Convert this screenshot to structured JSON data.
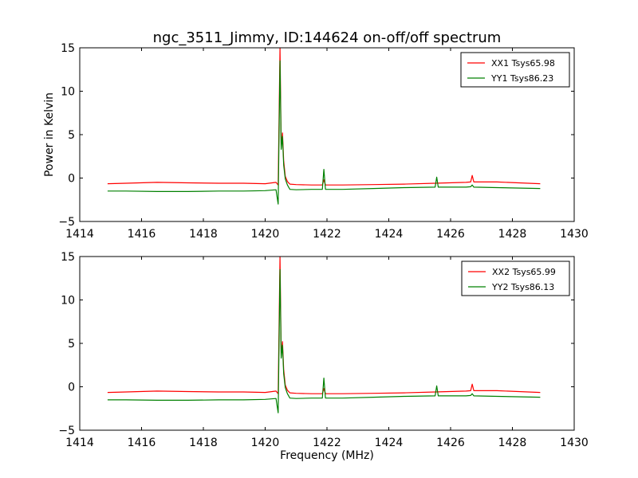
{
  "figure": {
    "title": "ngc_3511_Jimmy, ID:144624 on-off/off spectrum",
    "ylabel": "Power in Kelvin",
    "xlabel": "Frequency (MHz)"
  },
  "chart_data": [
    {
      "type": "line",
      "title": "ngc_3511_Jimmy, ID:144624 on-off/off spectrum",
      "ylabel": "Power in Kelvin",
      "xlabel": "",
      "xlim": [
        1414,
        1430
      ],
      "ylim": [
        -5,
        15
      ],
      "x_ticks": [
        1414,
        1416,
        1418,
        1420,
        1422,
        1424,
        1426,
        1428,
        1430
      ],
      "y_ticks": [
        -5,
        0,
        5,
        10,
        15
      ],
      "legend_position": "top-right",
      "series": [
        {
          "name": "XX1 Tsys65.98",
          "color": "#ff0000",
          "x": [
            1414.9,
            1415.5,
            1416.5,
            1417.5,
            1418.5,
            1419.3,
            1420.0,
            1420.35,
            1420.42,
            1420.48,
            1420.52,
            1420.56,
            1420.6,
            1420.65,
            1420.72,
            1420.8,
            1421.0,
            1421.5,
            1421.85,
            1421.9,
            1421.95,
            1422.5,
            1423.5,
            1424.5,
            1425.5,
            1426.5,
            1426.65,
            1426.7,
            1426.75,
            1427.5,
            1428.9
          ],
          "y": [
            -0.65,
            -0.6,
            -0.5,
            -0.55,
            -0.6,
            -0.6,
            -0.65,
            -0.5,
            -0.8,
            15.0,
            3.5,
            5.2,
            2.0,
            0.2,
            -0.4,
            -0.7,
            -0.75,
            -0.8,
            -0.8,
            -0.2,
            -0.8,
            -0.8,
            -0.75,
            -0.7,
            -0.6,
            -0.5,
            -0.45,
            0.3,
            -0.45,
            -0.45,
            -0.65
          ]
        },
        {
          "name": "YY1 Tsys86.23",
          "color": "#008000",
          "x": [
            1414.9,
            1415.5,
            1416.5,
            1417.5,
            1418.5,
            1419.3,
            1420.0,
            1420.35,
            1420.42,
            1420.48,
            1420.52,
            1420.56,
            1420.6,
            1420.65,
            1420.72,
            1420.8,
            1421.0,
            1421.5,
            1421.85,
            1421.9,
            1421.95,
            1422.5,
            1423.5,
            1424.5,
            1425.5,
            1425.55,
            1425.6,
            1426.5,
            1426.65,
            1426.7,
            1426.75,
            1427.5,
            1428.9
          ],
          "y": [
            -1.5,
            -1.5,
            -1.55,
            -1.55,
            -1.5,
            -1.5,
            -1.45,
            -1.35,
            -3.0,
            13.5,
            3.3,
            4.8,
            1.5,
            -0.1,
            -0.8,
            -1.3,
            -1.35,
            -1.3,
            -1.3,
            1.0,
            -1.3,
            -1.3,
            -1.2,
            -1.1,
            -1.05,
            0.1,
            -1.05,
            -1.05,
            -1.0,
            -0.8,
            -1.05,
            -1.1,
            -1.2
          ]
        }
      ]
    },
    {
      "type": "line",
      "title": "",
      "ylabel": "",
      "xlabel": "Frequency (MHz)",
      "xlim": [
        1414,
        1430
      ],
      "ylim": [
        -5,
        15
      ],
      "x_ticks": [
        1414,
        1416,
        1418,
        1420,
        1422,
        1424,
        1426,
        1428,
        1430
      ],
      "y_ticks": [
        -5,
        0,
        5,
        10,
        15
      ],
      "legend_position": "top-right",
      "series": [
        {
          "name": "XX2 Tsys65.99",
          "color": "#ff0000",
          "x": [
            1414.9,
            1415.5,
            1416.5,
            1417.5,
            1418.5,
            1419.3,
            1420.0,
            1420.35,
            1420.42,
            1420.48,
            1420.52,
            1420.56,
            1420.6,
            1420.65,
            1420.72,
            1420.8,
            1421.0,
            1421.5,
            1421.85,
            1421.9,
            1421.95,
            1422.5,
            1423.5,
            1424.5,
            1425.5,
            1426.5,
            1426.65,
            1426.7,
            1426.75,
            1427.5,
            1428.9
          ],
          "y": [
            -0.65,
            -0.6,
            -0.5,
            -0.55,
            -0.6,
            -0.6,
            -0.65,
            -0.5,
            -0.8,
            15.0,
            3.5,
            5.2,
            2.0,
            0.2,
            -0.4,
            -0.7,
            -0.75,
            -0.8,
            -0.8,
            -0.2,
            -0.8,
            -0.8,
            -0.75,
            -0.7,
            -0.6,
            -0.5,
            -0.45,
            0.3,
            -0.45,
            -0.45,
            -0.65
          ]
        },
        {
          "name": "YY2 Tsys86.13",
          "color": "#008000",
          "x": [
            1414.9,
            1415.5,
            1416.5,
            1417.5,
            1418.5,
            1419.3,
            1420.0,
            1420.35,
            1420.42,
            1420.48,
            1420.52,
            1420.56,
            1420.6,
            1420.65,
            1420.72,
            1420.8,
            1421.0,
            1421.5,
            1421.85,
            1421.9,
            1421.95,
            1422.5,
            1423.5,
            1424.5,
            1425.5,
            1425.55,
            1425.6,
            1426.5,
            1426.65,
            1426.7,
            1426.75,
            1427.5,
            1428.9
          ],
          "y": [
            -1.5,
            -1.5,
            -1.55,
            -1.55,
            -1.5,
            -1.5,
            -1.45,
            -1.35,
            -3.0,
            13.5,
            3.3,
            4.8,
            1.5,
            -0.1,
            -0.8,
            -1.3,
            -1.35,
            -1.3,
            -1.3,
            1.0,
            -1.3,
            -1.3,
            -1.2,
            -1.1,
            -1.05,
            0.1,
            -1.05,
            -1.05,
            -1.0,
            -0.8,
            -1.05,
            -1.1,
            -1.2
          ]
        }
      ]
    }
  ]
}
